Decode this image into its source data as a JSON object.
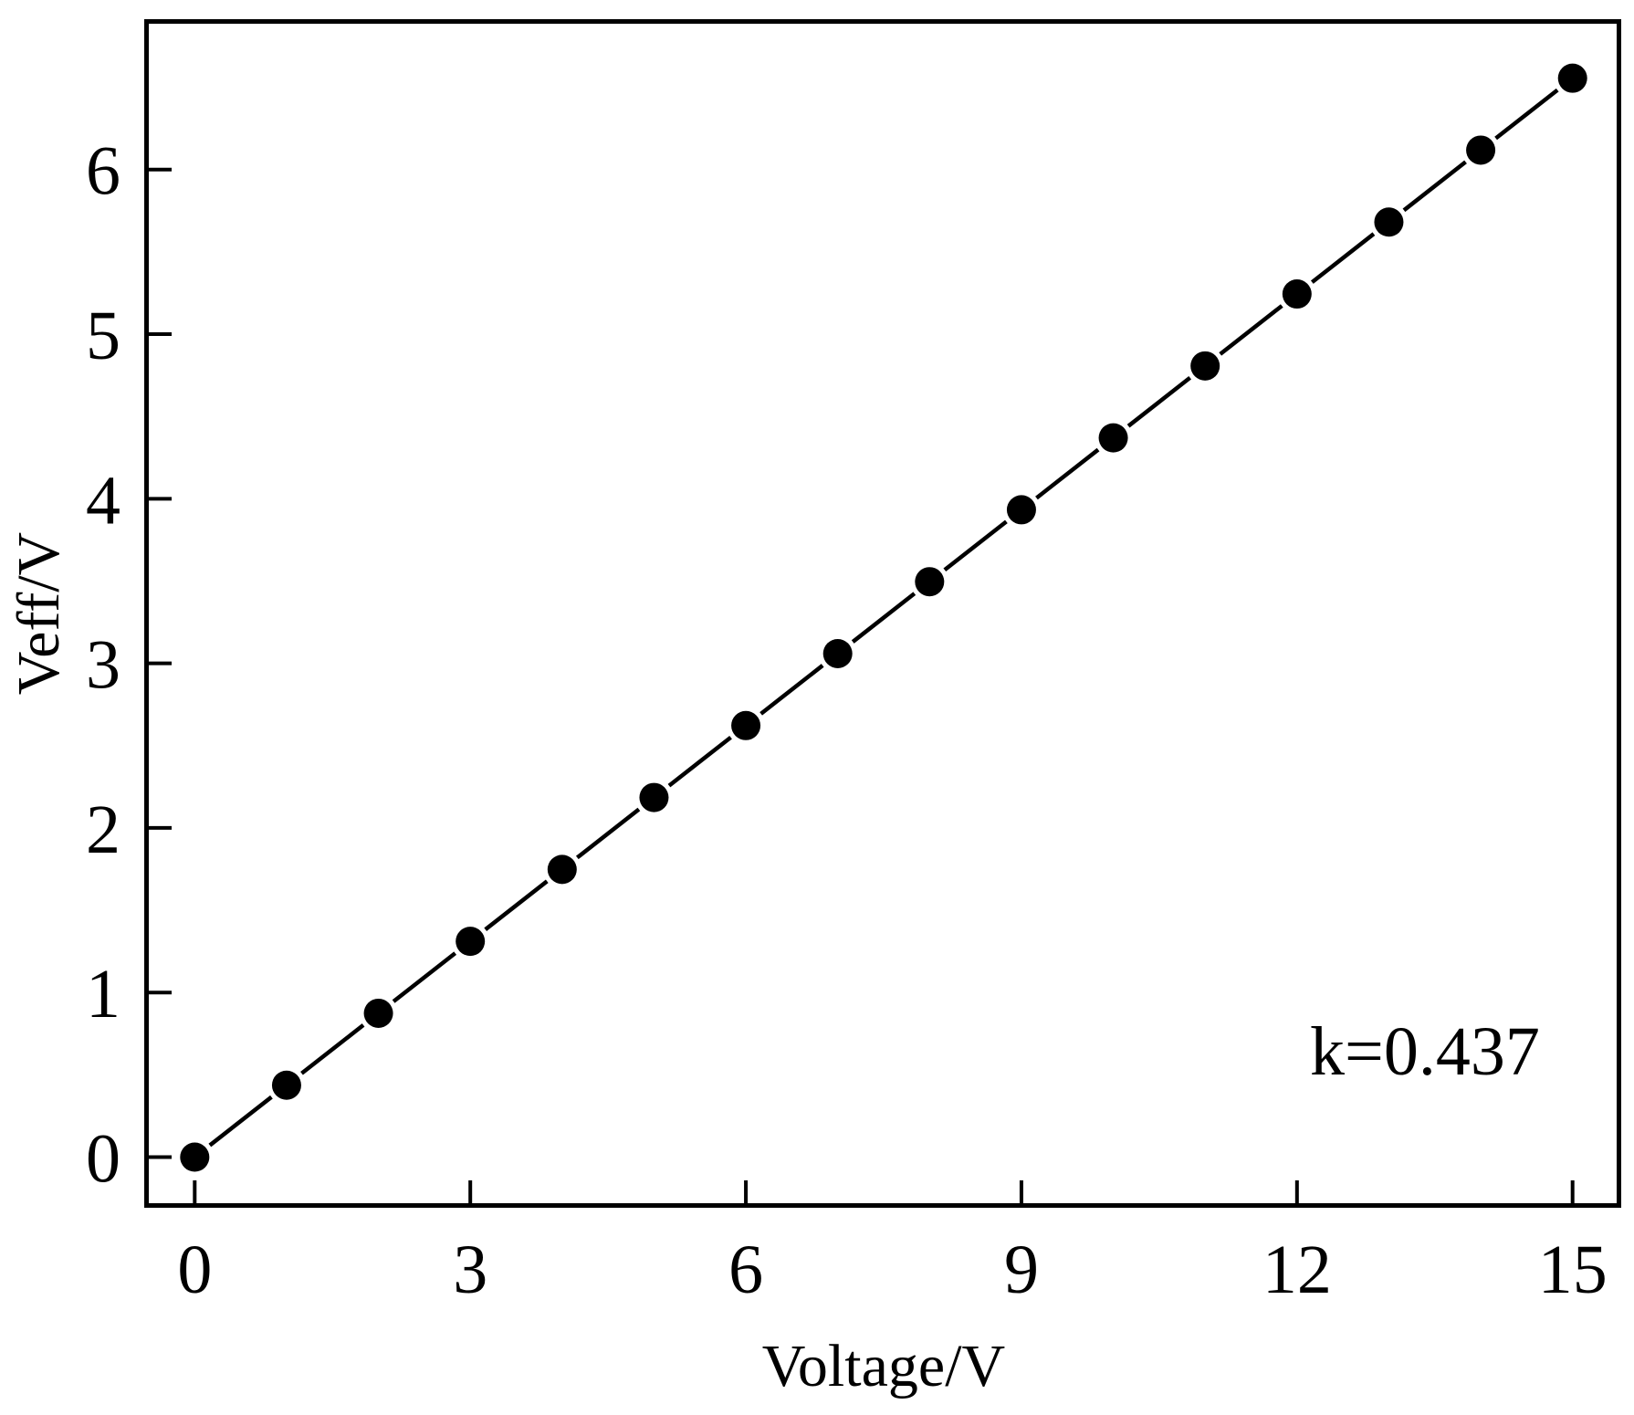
{
  "chart_data": {
    "type": "line",
    "title": "",
    "xlabel": "Voltage/V",
    "ylabel": "Veff/V",
    "annotation": "k=0.437",
    "x": [
      0,
      1,
      2,
      3,
      4,
      5,
      6,
      7,
      8,
      9,
      10,
      11,
      12,
      13,
      14,
      15
    ],
    "series": [
      {
        "name": "Veff",
        "marker": "filled-circle",
        "line": "solid",
        "color": "#000000",
        "values": [
          0,
          0.437,
          0.874,
          1.311,
          1.748,
          2.185,
          2.622,
          3.059,
          3.496,
          3.933,
          4.37,
          4.807,
          5.244,
          5.681,
          6.118,
          6.555
        ]
      }
    ],
    "xticks": [
      0,
      3,
      6,
      9,
      12,
      15
    ],
    "xtick_labels": [
      "0",
      "3",
      "6",
      "9",
      "12",
      "15"
    ],
    "yticks": [
      0,
      1,
      2,
      3,
      4,
      5,
      6
    ],
    "ytick_labels": [
      "0",
      "1",
      "2",
      "3",
      "4",
      "5",
      "6"
    ],
    "xlim": [
      -0.5,
      15.48
    ],
    "ylim": [
      -0.28,
      6.886
    ],
    "grid": false,
    "legend": "none",
    "ticks_direction": "in",
    "frame": "box"
  }
}
